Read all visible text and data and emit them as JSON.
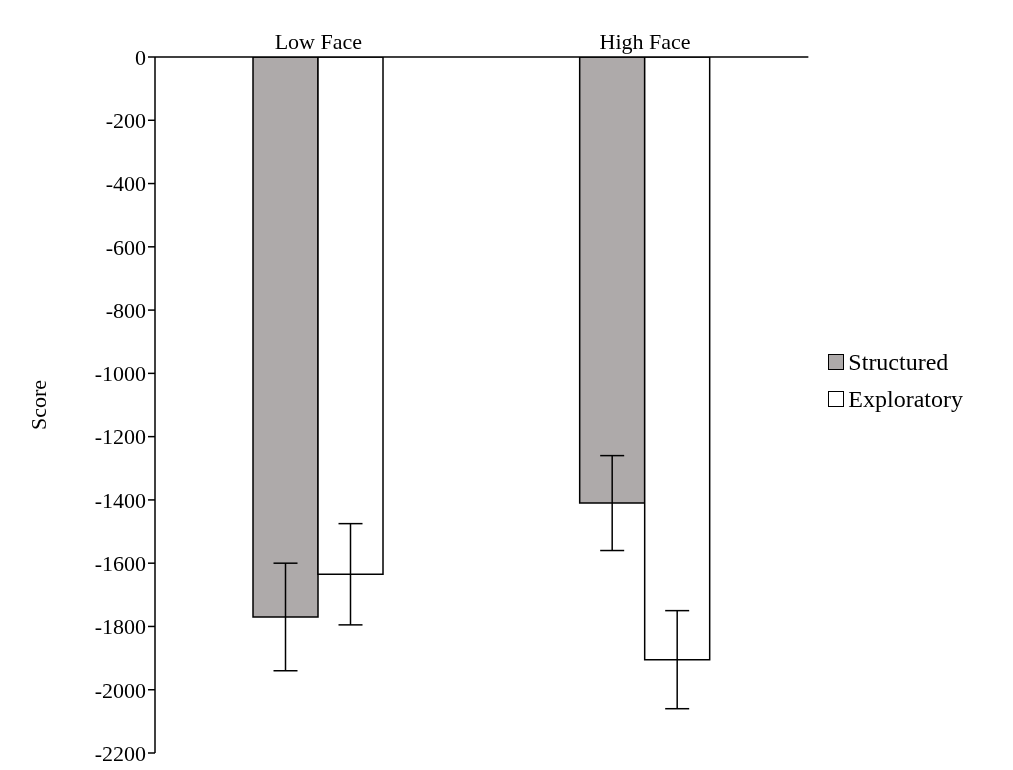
{
  "chart_data": {
    "type": "bar",
    "ylabel": "Score",
    "categories": [
      "Low Face",
      "High Face"
    ],
    "series": [
      {
        "name": "Structured",
        "color": "#aeaaaa",
        "values": [
          -1770,
          -1410
        ],
        "errors": [
          170,
          150
        ]
      },
      {
        "name": "Exploratory",
        "color": "#ffffff",
        "values": [
          -1635,
          -1905
        ],
        "errors": [
          160,
          155
        ]
      }
    ],
    "ylim": [
      -2200,
      0
    ],
    "yticks": [
      -2200,
      -2000,
      -1800,
      -1600,
      -1400,
      -1200,
      -1000,
      -800,
      -600,
      -400,
      -200,
      0
    ],
    "grid": false,
    "legend": "right"
  }
}
